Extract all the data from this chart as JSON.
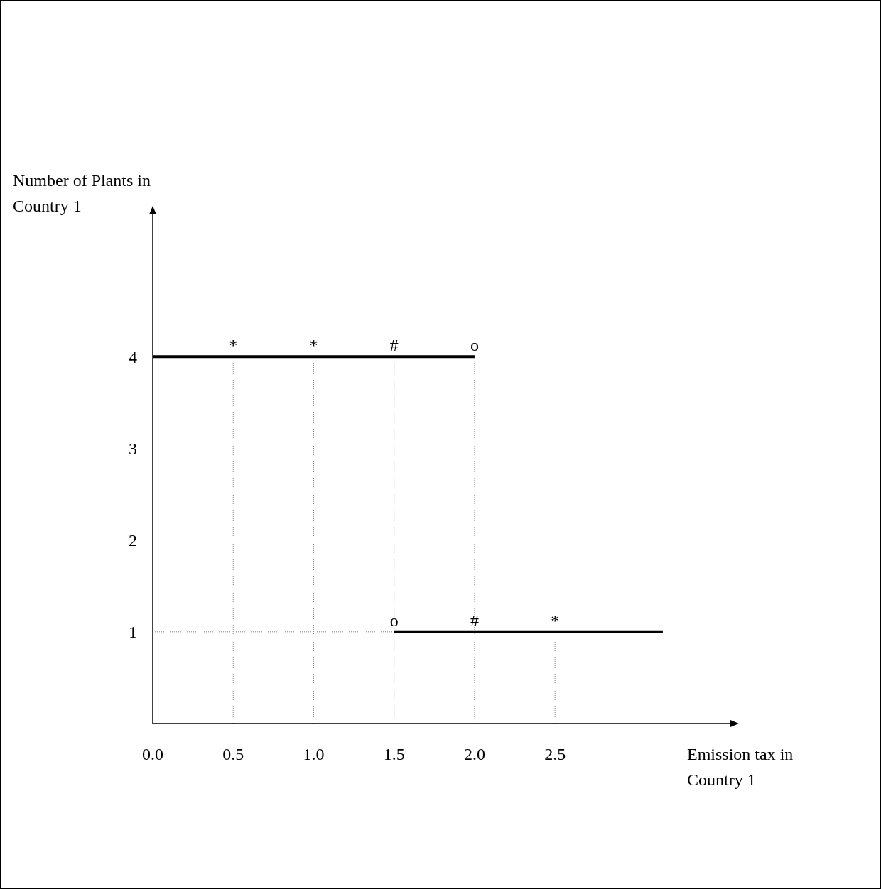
{
  "chart_data": {
    "type": "line",
    "xlabel": "Emission tax in Country 1",
    "ylabel": "Number of Plants in Country 1",
    "xlim": [
      0,
      3.59
    ],
    "ylim": [
      0,
      5.55
    ],
    "xticks": [
      {
        "value": 0,
        "label": "0.0"
      },
      {
        "value": 0.5,
        "label": "0.5"
      },
      {
        "value": 1,
        "label": "1.0"
      },
      {
        "value": 1.5,
        "label": "1.5"
      },
      {
        "value": 2,
        "label": "2.0"
      },
      {
        "value": 2.5,
        "label": "2.5"
      }
    ],
    "yticks": [
      1,
      2,
      3,
      4
    ],
    "series": [
      {
        "color": "#000000",
        "line_style": "solid",
        "x": [
          0,
          2
        ],
        "values": [
          4,
          4
        ]
      },
      {
        "color": "#000000",
        "line_style": "solid",
        "x": [
          1.5,
          3.17
        ],
        "values": [
          1,
          1
        ]
      },
      {
        "color": "#808080",
        "line_style": "dotted",
        "x": [
          0.5,
          0.5
        ],
        "values": [
          0,
          4
        ]
      },
      {
        "color": "#808080",
        "line_style": "dotted",
        "x": [
          1,
          1
        ],
        "values": [
          0,
          4
        ]
      },
      {
        "color": "#808080",
        "line_style": "dotted",
        "x": [
          1.5,
          1.5
        ],
        "values": [
          0,
          4
        ]
      },
      {
        "color": "#808080",
        "line_style": "dotted",
        "x": [
          2,
          2
        ],
        "values": [
          0,
          4
        ]
      },
      {
        "color": "#808080",
        "line_style": "dotted",
        "x": [
          2.5,
          2.5
        ],
        "values": [
          0,
          0.95
        ]
      },
      {
        "color": "#808080",
        "line_style": "dotted",
        "x": [
          0,
          1.5
        ],
        "values": [
          1,
          1
        ]
      }
    ],
    "annotations": [
      {
        "text": "*",
        "x": 0.5,
        "y": 4
      },
      {
        "text": "*",
        "x": 1,
        "y": 4
      },
      {
        "text": "#",
        "x": 1.5,
        "y": 4
      },
      {
        "text": "o",
        "x": 2,
        "y": 4
      },
      {
        "text": "o",
        "x": 1.5,
        "y": 1
      },
      {
        "text": "#",
        "x": 2,
        "y": 1
      },
      {
        "text": "*",
        "x": 2.5,
        "y": 1
      }
    ]
  }
}
